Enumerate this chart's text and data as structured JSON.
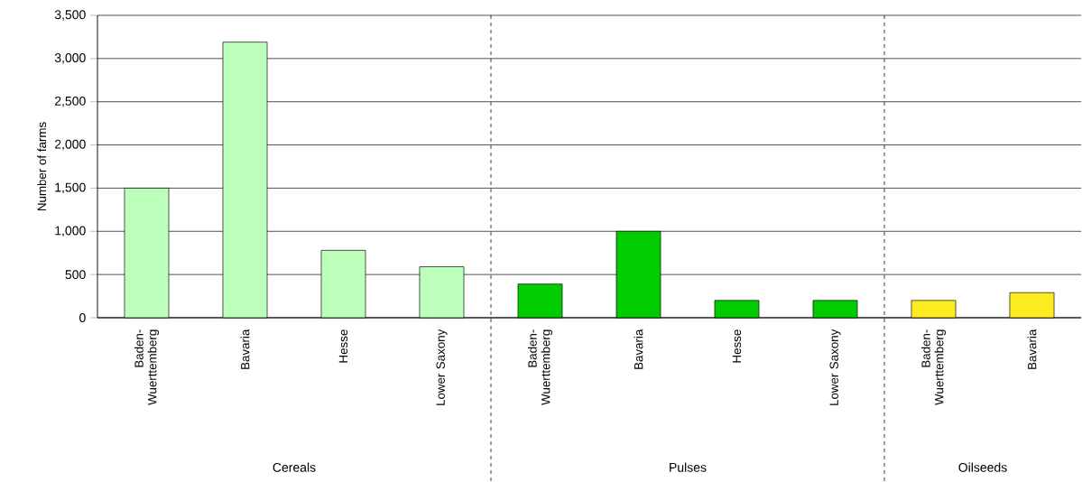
{
  "chart_data": {
    "type": "bar",
    "ylabel": "Number of farms",
    "categories": [
      "Baden-Wuerttemberg",
      "Bavaria",
      "Hesse",
      "Lower Saxony",
      "Baden-Wuerttemberg",
      "Bavaria",
      "Hesse",
      "Lower Saxony",
      "Baden-Wuerttemberg",
      "Bavaria"
    ],
    "values": [
      1500,
      3190,
      780,
      590,
      390,
      1000,
      200,
      200,
      200,
      290
    ],
    "colors": [
      "#bbffbb",
      "#bbffbb",
      "#bbffbb",
      "#bbffbb",
      "#00cc00",
      "#00cc00",
      "#00cc00",
      "#00cc00",
      "#ffeb22",
      "#ffeb22"
    ],
    "annotations": [
      "Cereals",
      "Pulses",
      "Oilseeds"
    ],
    "ylim": [
      0,
      3500
    ],
    "yticks": [
      {
        "value": 0,
        "label": "0"
      },
      {
        "value": 500,
        "label": "500"
      },
      {
        "value": 1000,
        "label": "1,000"
      },
      {
        "value": 1500,
        "label": "1,500"
      },
      {
        "value": 2000,
        "label": "2,000"
      },
      {
        "value": 2500,
        "label": "2,500"
      },
      {
        "value": 3000,
        "label": "3,000"
      },
      {
        "value": 3500,
        "label": "3,500"
      }
    ],
    "grid": "y"
  }
}
